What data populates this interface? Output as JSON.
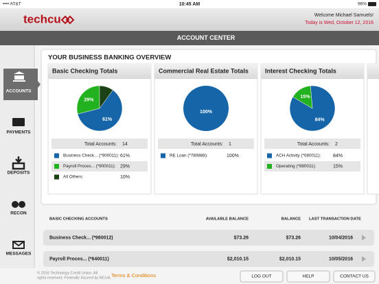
{
  "status_bar": {
    "carrier": "•••• AT&T",
    "time": "10:45 AM",
    "battery": "96%"
  },
  "header": {
    "logo": "techcu",
    "welcome": "Welcome Michael Samuels!",
    "date": "Today is Wed, October 12, 2016"
  },
  "title": "ACCOUNT CENTER",
  "nav": [
    "ACCOUNTS",
    "PAYMENTS",
    "DEPOSITS",
    "RECON",
    "MESSAGES"
  ],
  "overview": {
    "title": "YOUR BUSINESS BANKING OVERVIEW",
    "cards": [
      {
        "type": "pie",
        "title": "Basic Checking Totals",
        "total_label": "Total Accounts:",
        "total": 14,
        "rows": [
          {
            "name": "Business Check... (*900011):",
            "color": "#1565a8",
            "value": 61,
            "value_label": "61%",
            "pie_label": "61%"
          },
          {
            "name": "Payroll Proces... (*900011):",
            "color": "#22b11f",
            "value": 29,
            "value_label": "29%",
            "pie_label": "29%"
          },
          {
            "name": "All Others:",
            "color": "#1b4214",
            "value": 10,
            "value_label": "10%",
            "pie_label": null
          }
        ]
      },
      {
        "type": "pie",
        "title": "Commercial Real Estate Totals",
        "total_label": "Total Accounts:",
        "total": 1,
        "rows": [
          {
            "name": "RE Loan (*780888):",
            "color": "#1565a8",
            "value": 100,
            "value_label": "100%",
            "pie_label": "100%"
          }
        ]
      },
      {
        "type": "pie",
        "title": "Interest Checking Totals",
        "total_label": "Total Accounts:",
        "total": 2,
        "rows": [
          {
            "name": "ACH Activity (*080011):",
            "color": "#1565a8",
            "value": 84,
            "value_label": "84%",
            "pie_label": "84%"
          },
          {
            "name": "Operating (*880011):",
            "color": "#22b11f",
            "value": 15,
            "value_label": "15%",
            "pie_label": "15%"
          }
        ]
      }
    ]
  },
  "accounts_table": {
    "headers": [
      "BASIC CHECKING ACCOUNTS",
      "AVAILABLE BALANCE",
      "BALANCE",
      "LAST TRANSACTION DATE"
    ],
    "rows": [
      [
        "Business Check... (*980012)",
        "$73.26",
        "$73.26",
        "10/04/2016"
      ],
      [
        "Payroll Proces... (*640011)",
        "$2,010.15",
        "$2,010.15",
        "10/05/2016"
      ]
    ]
  },
  "footer": {
    "copyright": [
      "© 2016 Technology Credit Union. All",
      "rights reserved. Federally Insured by NCUA."
    ],
    "terms": "Terms & Conditions",
    "buttons": [
      "LOG OUT",
      "HELP",
      "CONTACT US"
    ]
  }
}
